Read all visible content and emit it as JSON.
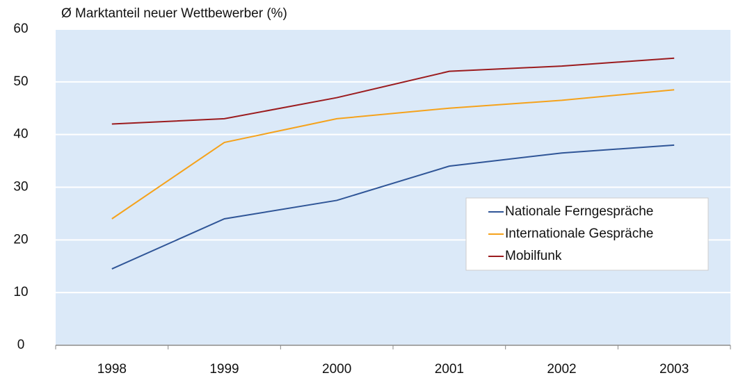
{
  "chart_data": {
    "type": "line",
    "title": "Ø Marktanteil neuer Wettbewerber (%)",
    "categories": [
      "1998",
      "1999",
      "2000",
      "2001",
      "2002",
      "2003"
    ],
    "series": [
      {
        "name": "Nationale Ferngespräche",
        "color": "#2f5597",
        "values": [
          14.5,
          24,
          27.5,
          34,
          36.5,
          38
        ]
      },
      {
        "name": "Internationale Gespräche",
        "color": "#f5a21b",
        "values": [
          24,
          38.5,
          43,
          45,
          46.5,
          48.5
        ]
      },
      {
        "name": "Mobilfunk",
        "color": "#9b1b1e",
        "values": [
          42,
          43,
          47,
          52,
          53,
          54.5
        ]
      }
    ],
    "ylim": [
      0,
      60
    ],
    "yticks": [
      0,
      10,
      20,
      30,
      40,
      50,
      60
    ],
    "grid": true,
    "legend": "right"
  }
}
